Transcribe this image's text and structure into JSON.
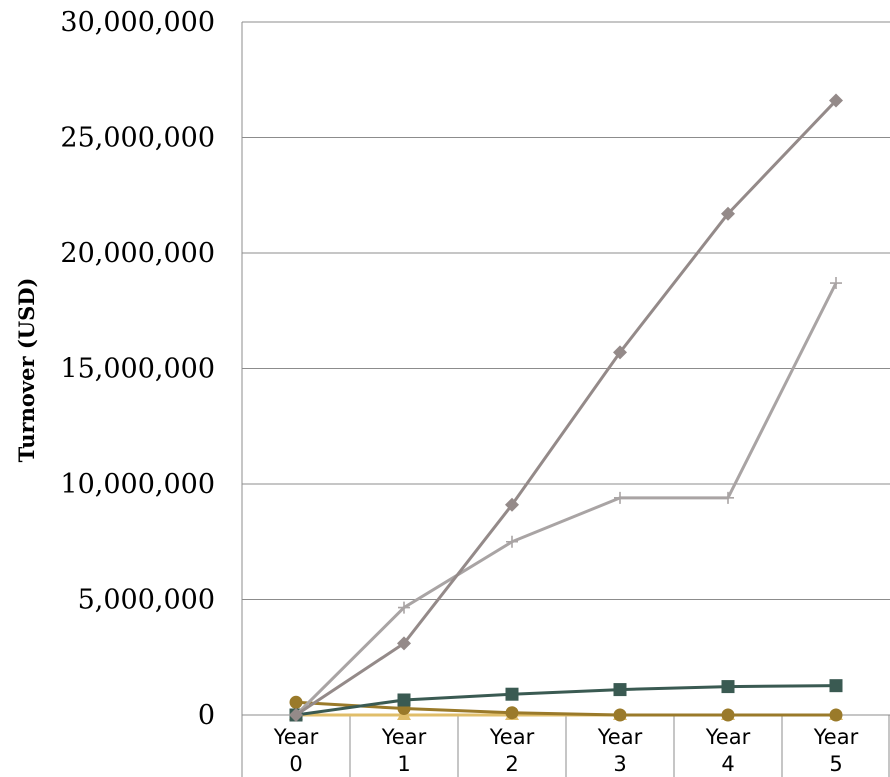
{
  "chart_data": {
    "type": "line",
    "title": "",
    "xlabel": "",
    "ylabel": "Turnover (USD)",
    "categories": [
      [
        "Year",
        "0"
      ],
      [
        "Year",
        "1"
      ],
      [
        "Year",
        "2"
      ],
      [
        "Year",
        "3"
      ],
      [
        "Year",
        "4"
      ],
      [
        "Year",
        "5"
      ]
    ],
    "ylim": [
      0,
      30000000
    ],
    "yticks": [
      0,
      5000000,
      10000000,
      15000000,
      20000000,
      25000000,
      30000000
    ],
    "ytick_labels": [
      "0",
      "5,000,000",
      "10,000,000",
      "15,000,000",
      "20,000,000",
      "25,000,000",
      "30,000,000"
    ],
    "grid": true,
    "legend": "none",
    "series": [
      {
        "values": [
          0,
          3100000,
          9100000,
          15700000,
          21700000,
          26600000
        ],
        "color": "#948a89",
        "marker": "diamond"
      },
      {
        "values": [
          0,
          4650000,
          7500000,
          9400000,
          9400000,
          18700000
        ],
        "color": "#a9a4a4",
        "marker": "plus"
      },
      {
        "values": [
          0,
          650000,
          900000,
          1100000,
          1230000,
          1270000
        ],
        "color": "#3a5a52",
        "marker": "square"
      },
      {
        "values": [
          550000,
          280000,
          100000,
          0,
          0,
          0
        ],
        "color": "#9a7a2a",
        "marker": "circle"
      },
      {
        "values": [
          0,
          0,
          0,
          0,
          0,
          0
        ],
        "color": "#e0be6a",
        "marker": "triangle"
      }
    ]
  }
}
